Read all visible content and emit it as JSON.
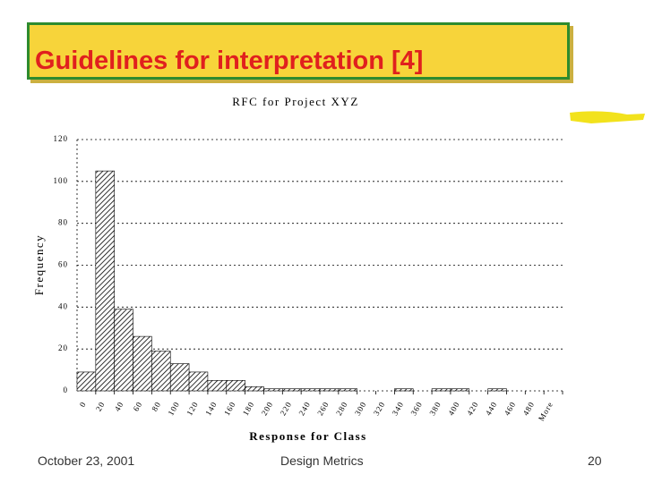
{
  "header": {
    "title": "Guidelines for interpretation [4]"
  },
  "chart_data": {
    "type": "bar",
    "title": "RFC for Project XYZ",
    "x_label": "Response for Class",
    "y_label": "Frequency",
    "categories": [
      "0",
      "20",
      "40",
      "60",
      "80",
      "100",
      "120",
      "140",
      "160",
      "180",
      "200",
      "220",
      "240",
      "260",
      "280",
      "300",
      "320",
      "340",
      "360",
      "380",
      "400",
      "420",
      "440",
      "460",
      "480",
      "More"
    ],
    "values": [
      9,
      105,
      39,
      26,
      19,
      13,
      9,
      5,
      5,
      2,
      1,
      1,
      1,
      1,
      1,
      0,
      0,
      1,
      0,
      1,
      1,
      0,
      1,
      0,
      0,
      0
    ],
    "color": "#000000",
    "ylim": [
      0,
      120
    ],
    "yticks": [
      0,
      20,
      40,
      60,
      80,
      100,
      120
    ],
    "grid": true
  },
  "footer": {
    "date": "October 23, 2001",
    "center": "Design Metrics",
    "page": "20"
  }
}
